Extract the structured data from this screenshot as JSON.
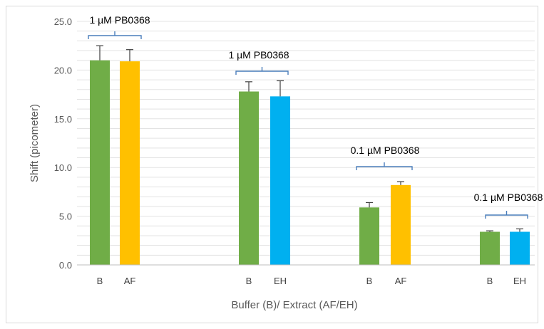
{
  "chart_data": {
    "type": "bar",
    "title": "",
    "xlabel": "Buffer (B)/ Extract (AF/EH)",
    "ylabel": "Shift (picometer)",
    "ylim": [
      0,
      25
    ],
    "yticks": [
      "0.0",
      "5.0",
      "10.0",
      "15.0",
      "20.0",
      "25.0"
    ],
    "grid": true,
    "groups": [
      {
        "annotation": "1 µM PB0368",
        "bars": [
          {
            "category": "B",
            "value": 21.0,
            "error": 1.5,
            "color": "#70ad47"
          },
          {
            "category": "AF",
            "value": 20.9,
            "error": 1.2,
            "color": "#ffc000"
          }
        ]
      },
      {
        "annotation": "1 µM PB0368",
        "bars": [
          {
            "category": "B",
            "value": 17.8,
            "error": 1.0,
            "color": "#70ad47"
          },
          {
            "category": "EH",
            "value": 17.3,
            "error": 1.6,
            "color": "#00b0f0"
          }
        ]
      },
      {
        "annotation": "0.1 µM PB0368",
        "bars": [
          {
            "category": "B",
            "value": 5.9,
            "error": 0.5,
            "color": "#70ad47"
          },
          {
            "category": "AF",
            "value": 8.2,
            "error": 0.35,
            "color": "#ffc000"
          }
        ]
      },
      {
        "annotation": "0.1 µM PB0368",
        "bars": [
          {
            "category": "B",
            "value": 3.4,
            "error": 0.1,
            "color": "#70ad47"
          },
          {
            "category": "EH",
            "value": 3.4,
            "error": 0.3,
            "color": "#00b0f0"
          }
        ]
      }
    ]
  },
  "colors": {
    "bracket": "#4a7ebb",
    "gridline": "#e3e3e3",
    "error_bar": "#404040"
  }
}
